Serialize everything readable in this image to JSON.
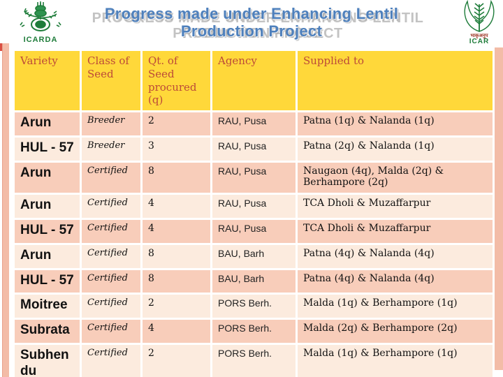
{
  "title": {
    "line1": "Progress made under Enhancing Lentil",
    "line2": "Production Project",
    "echo_line1": "Progress made under Enhancing Lentil",
    "echo_line2": "Production Project"
  },
  "logos": {
    "icarda_label": "ICARDA",
    "icar_hindi": "भाकृअनुप",
    "icar_label": "ICAR"
  },
  "table": {
    "headers": [
      "Variety",
      "Class of Seed",
      "Qt. of Seed procured (q)",
      "Agency",
      "Supplied to"
    ],
    "rows": [
      {
        "variety": "Arun",
        "class": "Breeder",
        "qty": "2",
        "agency": "RAU, Pusa",
        "supplied": "Patna (1q) & Nalanda (1q)"
      },
      {
        "variety": "HUL - 57",
        "class": "Breeder",
        "qty": "3",
        "agency": "RAU, Pusa",
        "supplied": "Patna (2q) & Nalanda (1q)"
      },
      {
        "variety": "Arun",
        "class": "Certified",
        "qty": "8",
        "agency": "RAU, Pusa",
        "supplied": "Naugaon (4q), Malda (2q) & Berhampore (2q)"
      },
      {
        "variety": "Arun",
        "class": "Certified",
        "qty": "4",
        "agency": "RAU, Pusa",
        "supplied": "TCA Dholi & Muzaffarpur"
      },
      {
        "variety": "HUL - 57",
        "class": "Certified",
        "qty": "4",
        "agency": "RAU, Pusa",
        "supplied": "TCA Dholi & Muzaffarpur"
      },
      {
        "variety": "Arun",
        "class": "Certified",
        "qty": "8",
        "agency": "BAU, Barh",
        "supplied": "Patna (4q) & Nalanda (4q)"
      },
      {
        "variety": "HUL - 57",
        "class": "Certified",
        "qty": "8",
        "agency": "BAU, Barh",
        "supplied": "Patna (4q) & Nalanda (4q)"
      },
      {
        "variety": "Moitree",
        "class": "Certified",
        "qty": "2",
        "agency": "PORS Berh.",
        "supplied": "Malda (1q) & Berhampore (1q)"
      },
      {
        "variety": "Subrata",
        "class": "Certified",
        "qty": "4",
        "agency": "PORS Berh.",
        "supplied": "Malda (2q) & Berhampore (2q)"
      },
      {
        "variety": "Subhendu",
        "class": "Certified",
        "qty": "2",
        "agency": "PORS Berh.",
        "supplied": "Malda (1q) & Berhampore (1q)"
      }
    ]
  },
  "colors": {
    "header_bg": "#ffd83a",
    "header_text": "#bc4a38",
    "row_dark": "#f8cdba",
    "row_light": "#fcebde",
    "strip": "#f3bca7",
    "corner_red": "#d94f43",
    "title_blue": "#4e80bc",
    "title_echo_gray": "#c3c3c3",
    "logo_green": "#1e7c3a"
  }
}
